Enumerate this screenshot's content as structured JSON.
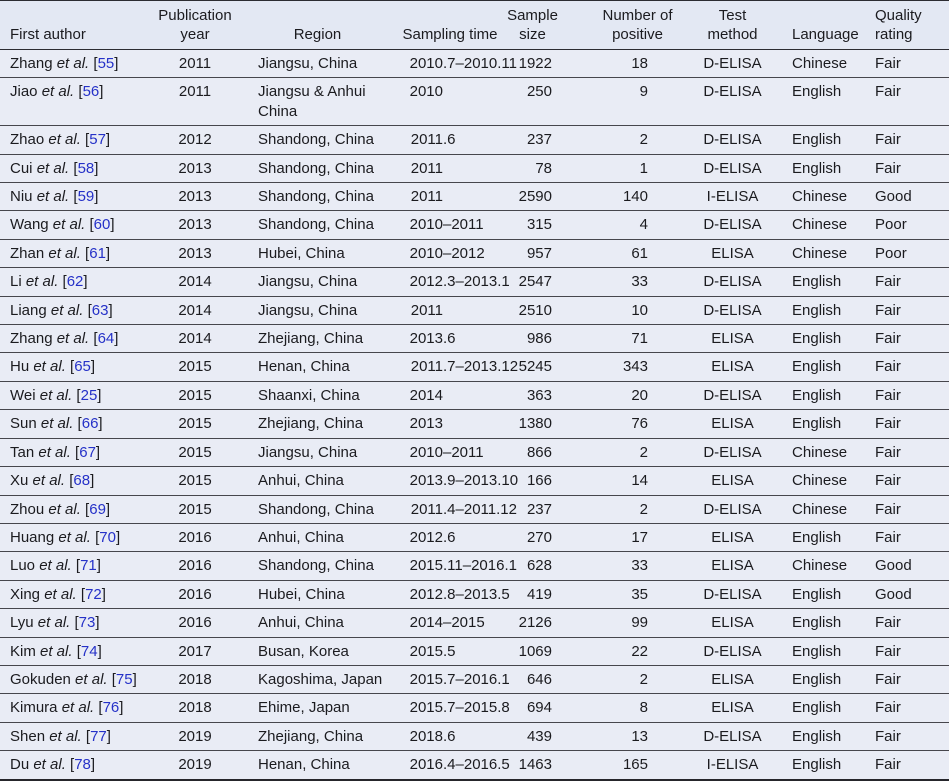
{
  "colors": {
    "table_background": "#e9ecf5",
    "header_background": "#e3e8f3",
    "rule": "#46464c",
    "text": "#1b1b1f",
    "citation_blue": "#2531c8"
  },
  "table": {
    "etal_text": "et al.",
    "columns": [
      {
        "key": "author",
        "label": "First author"
      },
      {
        "key": "year",
        "label": "Publication year"
      },
      {
        "key": "region",
        "label": "Region"
      },
      {
        "key": "sampling",
        "label": "Sampling time"
      },
      {
        "key": "sample",
        "label": "Sample size"
      },
      {
        "key": "positive",
        "label": "Number of positive"
      },
      {
        "key": "method",
        "label": "Test method"
      },
      {
        "key": "language",
        "label": "Language"
      },
      {
        "key": "quality",
        "label": "Quality rating"
      }
    ],
    "rows": [
      {
        "author": "Zhang",
        "ref": "55",
        "year": "2011",
        "region": "Jiangsu, China",
        "sampling": "2010.7–2010.11",
        "sample": "1922",
        "positive": "18",
        "method": "D-ELISA",
        "language": "Chinese",
        "quality": "Fair"
      },
      {
        "author": "Jiao",
        "ref": "56",
        "year": "2011",
        "region": "Jiangsu & Anhui China",
        "sampling": "2010",
        "sample": "250",
        "positive": "9",
        "method": "D-ELISA",
        "language": "English",
        "quality": "Fair"
      },
      {
        "author": "Zhao",
        "ref": "57",
        "year": "2012",
        "region": "Shandong, China",
        "sampling": "2011.6",
        "sample": "237",
        "positive": "2",
        "method": "D-ELISA",
        "language": "English",
        "quality": "Fair"
      },
      {
        "author": "Cui",
        "ref": "58",
        "year": "2013",
        "region": "Shandong, China",
        "sampling": "2011",
        "sample": "78",
        "positive": "1",
        "method": "D-ELISA",
        "language": "English",
        "quality": "Fair"
      },
      {
        "author": "Niu",
        "ref": "59",
        "year": "2013",
        "region": "Shandong, China",
        "sampling": "2011",
        "sample": "2590",
        "positive": "140",
        "method": "I-ELISA",
        "language": "Chinese",
        "quality": "Good"
      },
      {
        "author": "Wang",
        "ref": "60",
        "year": "2013",
        "region": "Shandong, China",
        "sampling": "2010–2011",
        "sample": "315",
        "positive": "4",
        "method": "D-ELISA",
        "language": "Chinese",
        "quality": "Poor"
      },
      {
        "author": "Zhan",
        "ref": "61",
        "year": "2013",
        "region": "Hubei, China",
        "sampling": "2010–2012",
        "sample": "957",
        "positive": "61",
        "method": "ELISA",
        "language": "Chinese",
        "quality": "Poor"
      },
      {
        "author": "Li",
        "ref": "62",
        "year": "2014",
        "region": "Jiangsu, China",
        "sampling": "2012.3–2013.1",
        "sample": "2547",
        "positive": "33",
        "method": "D-ELISA",
        "language": "English",
        "quality": "Fair"
      },
      {
        "author": "Liang",
        "ref": "63",
        "year": "2014",
        "region": "Jiangsu, China",
        "sampling": "2011",
        "sample": "2510",
        "positive": "10",
        "method": "D-ELISA",
        "language": "English",
        "quality": "Fair"
      },
      {
        "author": "Zhang",
        "ref": "64",
        "year": "2014",
        "region": "Zhejiang, China",
        "sampling": "2013.6",
        "sample": "986",
        "positive": "71",
        "method": "ELISA",
        "language": "English",
        "quality": "Fair"
      },
      {
        "author": "Hu",
        "ref": "65",
        "year": "2015",
        "region": "Henan, China",
        "sampling": "2011.7–2013.12",
        "sample": "5245",
        "positive": "343",
        "method": "ELISA",
        "language": "English",
        "quality": "Fair"
      },
      {
        "author": "Wei",
        "ref": "25",
        "year": "2015",
        "region": "Shaanxi, China",
        "sampling": "2014",
        "sample": "363",
        "positive": "20",
        "method": "D-ELISA",
        "language": "English",
        "quality": "Fair"
      },
      {
        "author": "Sun",
        "ref": "66",
        "year": "2015",
        "region": "Zhejiang, China",
        "sampling": "2013",
        "sample": "1380",
        "positive": "76",
        "method": "ELISA",
        "language": "English",
        "quality": "Fair"
      },
      {
        "author": "Tan",
        "ref": "67",
        "year": "2015",
        "region": "Jiangsu, China",
        "sampling": "2010–2011",
        "sample": "866",
        "positive": "2",
        "method": "D-ELISA",
        "language": "Chinese",
        "quality": "Fair"
      },
      {
        "author": "Xu",
        "ref": "68",
        "year": "2015",
        "region": "Anhui, China",
        "sampling": "2013.9–2013.10",
        "sample": "166",
        "positive": "14",
        "method": "ELISA",
        "language": "Chinese",
        "quality": "Fair"
      },
      {
        "author": "Zhou",
        "ref": "69",
        "year": "2015",
        "region": "Shandong, China",
        "sampling": "2011.4–2011.12",
        "sample": "237",
        "positive": "2",
        "method": "D-ELISA",
        "language": "Chinese",
        "quality": "Fair"
      },
      {
        "author": "Huang",
        "ref": "70",
        "year": "2016",
        "region": "Anhui, China",
        "sampling": "2012.6",
        "sample": "270",
        "positive": "17",
        "method": "ELISA",
        "language": "English",
        "quality": "Fair"
      },
      {
        "author": "Luo",
        "ref": "71",
        "year": "2016",
        "region": "Shandong, China",
        "sampling": "2015.11–2016.1",
        "sample": "628",
        "positive": "33",
        "method": "ELISA",
        "language": "Chinese",
        "quality": "Good"
      },
      {
        "author": "Xing",
        "ref": "72",
        "year": "2016",
        "region": "Hubei, China",
        "sampling": "2012.8–2013.5",
        "sample": "419",
        "positive": "35",
        "method": "D-ELISA",
        "language": "English",
        "quality": "Good"
      },
      {
        "author": "Lyu",
        "ref": "73",
        "year": "2016",
        "region": "Anhui, China",
        "sampling": "2014–2015",
        "sample": "2126",
        "positive": "99",
        "method": "ELISA",
        "language": "English",
        "quality": "Fair"
      },
      {
        "author": "Kim",
        "ref": "74",
        "year": "2017",
        "region": "Busan, Korea",
        "sampling": "2015.5",
        "sample": "1069",
        "positive": "22",
        "method": "D-ELISA",
        "language": "English",
        "quality": "Fair"
      },
      {
        "author": "Gokuden",
        "ref": "75",
        "year": "2018",
        "region": "Kagoshima, Japan",
        "sampling": "2015.7–2016.1",
        "sample": "646",
        "positive": "2",
        "method": "ELISA",
        "language": "English",
        "quality": "Fair"
      },
      {
        "author": "Kimura",
        "ref": "76",
        "year": "2018",
        "region": "Ehime, Japan",
        "sampling": "2015.7–2015.8",
        "sample": "694",
        "positive": "8",
        "method": "ELISA",
        "language": "English",
        "quality": "Fair"
      },
      {
        "author": "Shen",
        "ref": "77",
        "year": "2019",
        "region": "Zhejiang, China",
        "sampling": "2018.6",
        "sample": "439",
        "positive": "13",
        "method": "D-ELISA",
        "language": "English",
        "quality": "Fair"
      },
      {
        "author": "Du",
        "ref": "78",
        "year": "2019",
        "region": "Henan, China",
        "sampling": "2016.4–2016.5",
        "sample": "1463",
        "positive": "165",
        "method": "I-ELISA",
        "language": "English",
        "quality": "Fair"
      }
    ]
  }
}
